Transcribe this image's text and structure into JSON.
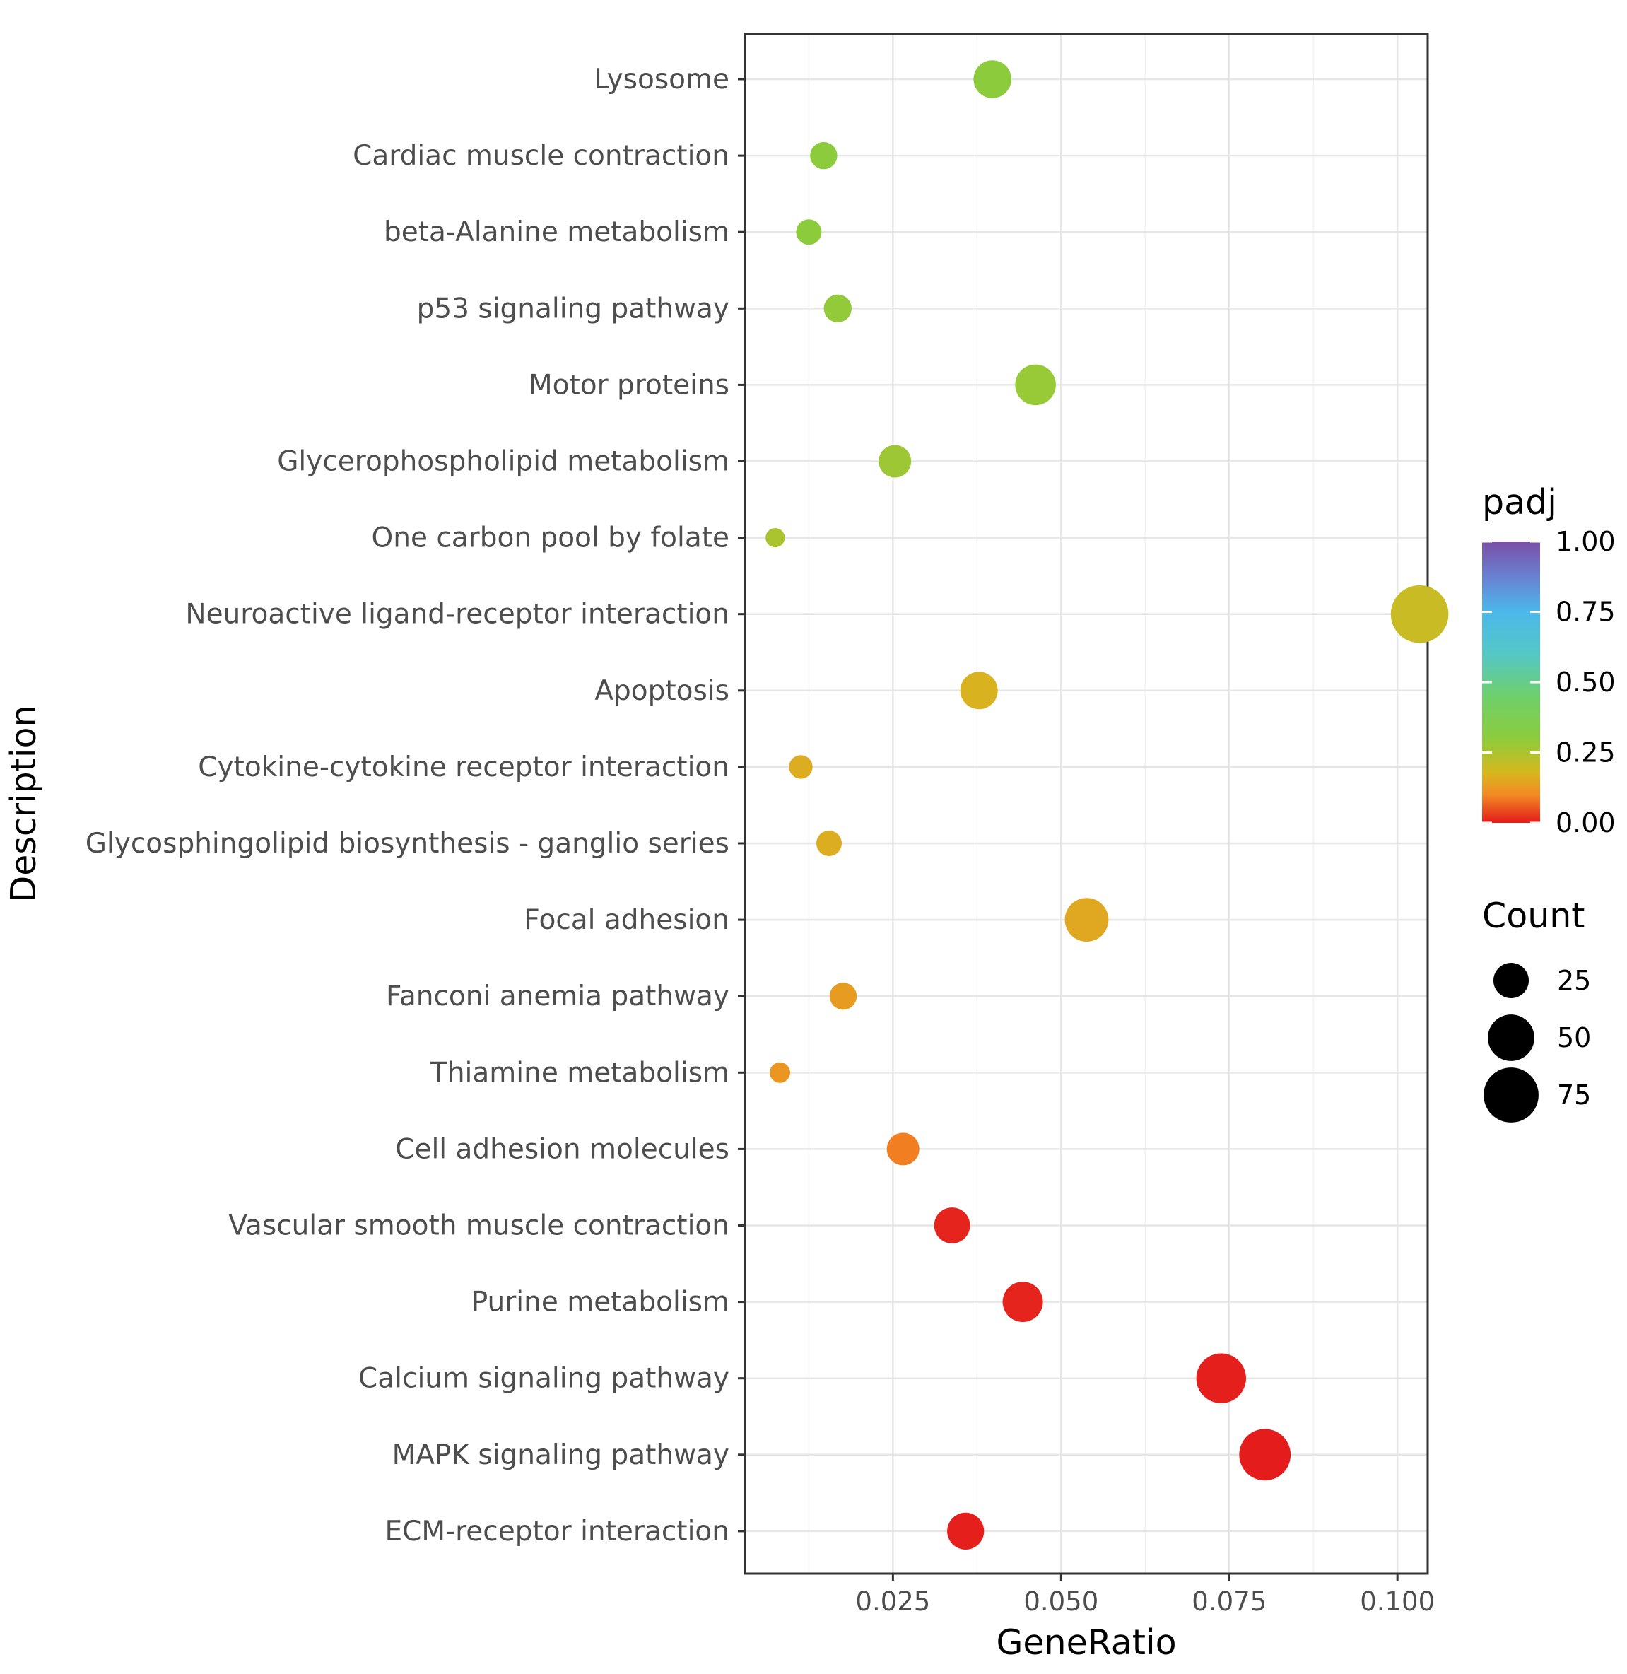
{
  "chart_data": {
    "type": "scatter",
    "title": "",
    "xlabel": "GeneRatio",
    "ylabel": "Description",
    "xlim": [
      0.003,
      0.1045
    ],
    "x_ticks": [
      {
        "value": 0.025,
        "label": "0.025"
      },
      {
        "value": 0.05,
        "label": "0.050"
      },
      {
        "value": 0.075,
        "label": "0.075"
      },
      {
        "value": 0.1,
        "label": "0.100"
      }
    ],
    "grid": true,
    "categories": [
      "Lysosome",
      "Cardiac muscle contraction",
      "beta-Alanine metabolism",
      "p53 signaling pathway",
      "Motor proteins",
      "Glycerophospholipid metabolism",
      "One carbon pool by folate",
      "Neuroactive ligand-receptor interaction",
      "Apoptosis",
      "Cytokine-cytokine receptor interaction",
      "Glycosphingolipid biosynthesis - ganglio series",
      "Focal adhesion",
      "Fanconi anemia pathway",
      "Thiamine metabolism",
      "Cell adhesion molecules",
      "Vascular smooth muscle contraction",
      "Purine metabolism",
      "Calcium signaling pathway",
      "MAPK signaling pathway",
      "ECM-receptor interaction"
    ],
    "points": [
      {
        "category": "Lysosome",
        "gene_ratio": 0.0398,
        "count": 30,
        "padj": 0.3
      },
      {
        "category": "Cardiac muscle contraction",
        "gene_ratio": 0.0147,
        "count": 12,
        "padj": 0.3
      },
      {
        "category": "beta-Alanine metabolism",
        "gene_ratio": 0.0125,
        "count": 10,
        "padj": 0.3
      },
      {
        "category": "p53 signaling pathway",
        "gene_ratio": 0.0168,
        "count": 13,
        "padj": 0.29
      },
      {
        "category": "Motor proteins",
        "gene_ratio": 0.0462,
        "count": 36,
        "padj": 0.28
      },
      {
        "category": "Glycerophospholipid metabolism",
        "gene_ratio": 0.0253,
        "count": 20,
        "padj": 0.27
      },
      {
        "category": "One carbon pool by folate",
        "gene_ratio": 0.0075,
        "count": 4,
        "padj": 0.25
      },
      {
        "category": "Neuroactive ligand-receptor interaction",
        "gene_ratio": 0.1033,
        "count": 84,
        "padj": 0.2
      },
      {
        "category": "Apoptosis",
        "gene_ratio": 0.0378,
        "count": 29,
        "padj": 0.17
      },
      {
        "category": "Cytokine-cytokine receptor interaction",
        "gene_ratio": 0.0113,
        "count": 8,
        "padj": 0.16
      },
      {
        "category": "Glycosphingolipid biosynthesis - ganglio series",
        "gene_ratio": 0.0155,
        "count": 10,
        "padj": 0.16
      },
      {
        "category": "Focal adhesion",
        "gene_ratio": 0.0538,
        "count": 43,
        "padj": 0.15
      },
      {
        "category": "Fanconi anemia pathway",
        "gene_ratio": 0.0176,
        "count": 12,
        "padj": 0.13
      },
      {
        "category": "Thiamine metabolism",
        "gene_ratio": 0.0082,
        "count": 5,
        "padj": 0.12
      },
      {
        "category": "Cell adhesion molecules",
        "gene_ratio": 0.0265,
        "count": 20,
        "padj": 0.09
      },
      {
        "category": "Vascular smooth muscle contraction",
        "gene_ratio": 0.0338,
        "count": 26,
        "padj": 0.01
      },
      {
        "category": "Purine metabolism",
        "gene_ratio": 0.0443,
        "count": 35,
        "padj": 0.01
      },
      {
        "category": "Calcium signaling pathway",
        "gene_ratio": 0.0738,
        "count": 59,
        "padj": 0.005
      },
      {
        "category": "MAPK signaling pathway",
        "gene_ratio": 0.0803,
        "count": 64,
        "padj": 0.003
      },
      {
        "category": "ECM-receptor interaction",
        "gene_ratio": 0.0358,
        "count": 28,
        "padj": 0.005
      }
    ],
    "color_legend": {
      "title": "padj",
      "ticks": [
        {
          "value": 1.0,
          "label": "1.00"
        },
        {
          "value": 0.75,
          "label": "0.75"
        },
        {
          "value": 0.5,
          "label": "0.50"
        },
        {
          "value": 0.25,
          "label": "0.25"
        },
        {
          "value": 0.0,
          "label": "0.00"
        }
      ],
      "range": [
        0,
        1
      ],
      "gradient": [
        {
          "value": 0.0,
          "color": "#e41a1c"
        },
        {
          "value": 0.1,
          "color": "#f28a22"
        },
        {
          "value": 0.18,
          "color": "#d5b81f"
        },
        {
          "value": 0.3,
          "color": "#8ccc3c"
        },
        {
          "value": 0.45,
          "color": "#6fcf6b"
        },
        {
          "value": 0.6,
          "color": "#54c7c6"
        },
        {
          "value": 0.75,
          "color": "#4bb8ea"
        },
        {
          "value": 0.88,
          "color": "#6a7fd0"
        },
        {
          "value": 1.0,
          "color": "#7a4fa6"
        }
      ]
    },
    "size_legend": {
      "title": "Count",
      "entries": [
        {
          "value": 25,
          "label": "25"
        },
        {
          "value": 50,
          "label": "50"
        },
        {
          "value": 75,
          "label": "75"
        }
      ]
    },
    "legend_position": "right"
  }
}
